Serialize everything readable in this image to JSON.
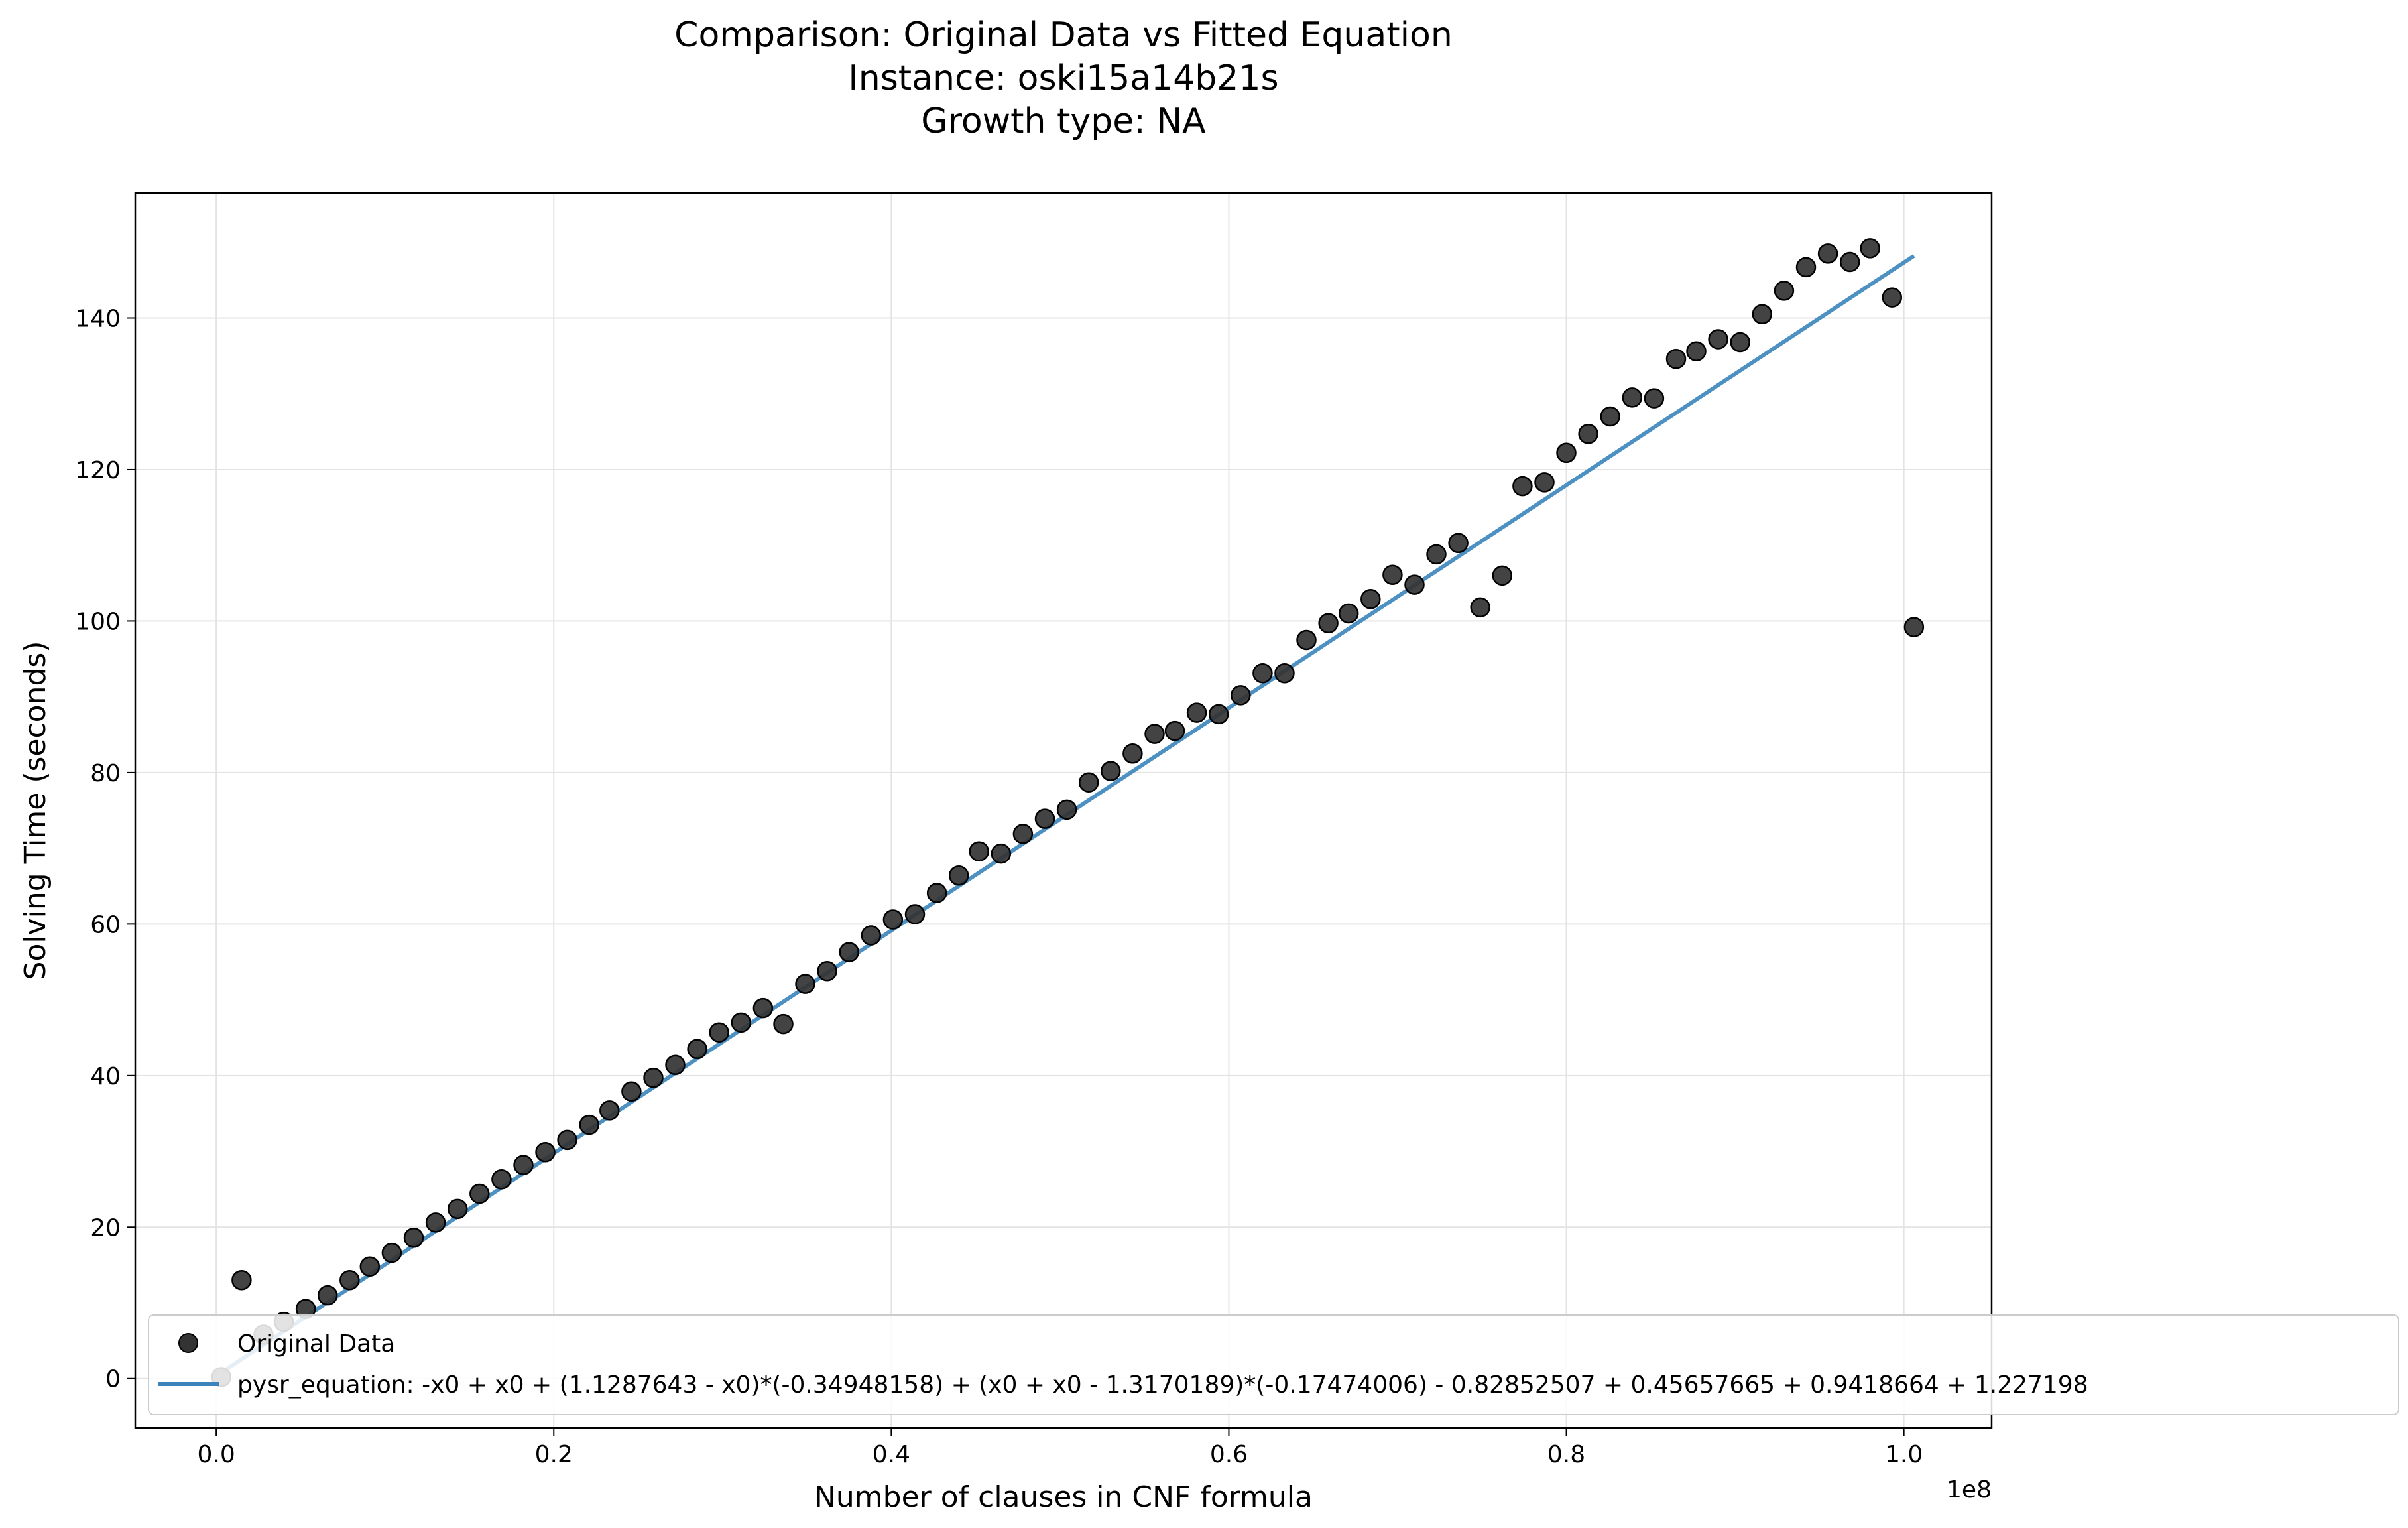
{
  "chart_data": {
    "type": "scatter",
    "title": [
      "Comparison: Original Data vs Fitted Equation",
      "Instance: oski15a14b21s",
      "Growth type: NA"
    ],
    "xlabel": "Number of clauses in CNF formula",
    "ylabel": "Solving Time (seconds)",
    "x_offset_label": "1e8",
    "xlim": [
      -0.048,
      1.052
    ],
    "ylim": [
      -6.5,
      156.5
    ],
    "x_scale": 100000000,
    "x_ticks": [
      0.0,
      0.2,
      0.4,
      0.6,
      0.8,
      1.0
    ],
    "x_tick_labels": [
      "0.0",
      "0.2",
      "0.4",
      "0.6",
      "0.8",
      "1.0"
    ],
    "y_ticks": [
      0,
      20,
      40,
      60,
      80,
      100,
      120,
      140
    ],
    "y_tick_labels": [
      "0",
      "20",
      "40",
      "60",
      "80",
      "100",
      "120",
      "140"
    ],
    "grid": true,
    "legend_position": "lower-left",
    "series": [
      {
        "name": "Original Data",
        "kind": "scatter",
        "color": "#333333",
        "x": [
          0.003,
          0.015,
          0.028,
          0.04,
          0.053,
          0.066,
          0.079,
          0.091,
          0.104,
          0.117,
          0.13,
          0.143,
          0.156,
          0.169,
          0.182,
          0.195,
          0.208,
          0.221,
          0.233,
          0.246,
          0.259,
          0.272,
          0.285,
          0.298,
          0.311,
          0.324,
          0.336,
          0.349,
          0.362,
          0.375,
          0.388,
          0.401,
          0.414,
          0.427,
          0.44,
          0.452,
          0.465,
          0.478,
          0.491,
          0.504,
          0.517,
          0.53,
          0.543,
          0.556,
          0.568,
          0.581,
          0.594,
          0.607,
          0.62,
          0.633,
          0.646,
          0.659,
          0.671,
          0.684,
          0.697,
          0.71,
          0.723,
          0.736,
          0.749,
          0.762,
          0.774,
          0.787,
          0.8,
          0.813,
          0.826,
          0.839,
          0.852,
          0.865,
          0.877,
          0.89,
          0.903,
          0.916,
          0.929,
          0.942,
          0.955,
          0.968,
          0.98,
          0.993,
          1.006
        ],
        "y": [
          0.2,
          13.0,
          5.8,
          7.5,
          9.2,
          11.0,
          13.0,
          14.8,
          16.6,
          18.6,
          20.6,
          22.4,
          24.4,
          26.3,
          28.2,
          29.9,
          31.5,
          33.5,
          35.4,
          37.9,
          39.7,
          41.4,
          43.5,
          45.7,
          47.0,
          48.9,
          46.8,
          52.1,
          53.8,
          56.3,
          58.5,
          60.6,
          61.3,
          64.1,
          66.4,
          69.6,
          69.3,
          71.9,
          73.9,
          75.1,
          78.7,
          80.2,
          82.5,
          85.1,
          85.5,
          87.9,
          87.7,
          90.2,
          93.1,
          93.1,
          97.5,
          99.7,
          101.0,
          102.9,
          106.1,
          104.8,
          108.8,
          110.3,
          101.8,
          106.0,
          117.8,
          118.3,
          122.2,
          124.7,
          127.0,
          129.5,
          129.4,
          134.6,
          135.6,
          137.2,
          136.8,
          140.5,
          143.6,
          146.7,
          148.5,
          147.4,
          149.2,
          142.7,
          99.2
        ]
      },
      {
        "name": "pysr_equation: -x0 + x0 + (1.1287643 - x0)*(-0.34948158) + (x0 + x0 - 1.3170189)*(-0.17474006) - 0.82852507 + 0.45657665 + 0.9418664 + 1.227198",
        "kind": "line",
        "color": "#3a84bb",
        "x": [
          0.003,
          1.006
        ],
        "y": [
          0.8,
          148.2
        ]
      }
    ]
  }
}
